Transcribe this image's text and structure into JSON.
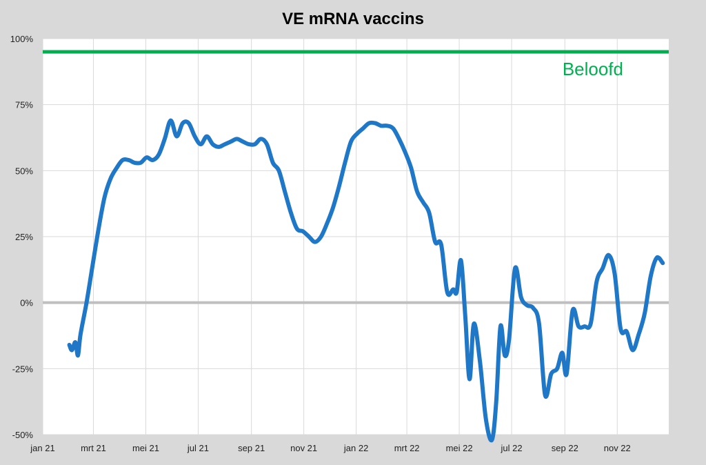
{
  "chart_data": {
    "type": "line",
    "title": "VE mRNA vaccins",
    "xlabel": "",
    "ylabel": "",
    "x_tick_labels": [
      "jan 21",
      "mrt 21",
      "mei 21",
      "jul 21",
      "sep 21",
      "nov 21",
      "jan 22",
      "mrt 22",
      "mei 22",
      "jul 22",
      "sep 22",
      "nov 22"
    ],
    "x_ticks": [
      "2021-01-01",
      "2021-03-01",
      "2021-05-01",
      "2021-07-01",
      "2021-09-01",
      "2021-11-01",
      "2022-01-01",
      "2022-03-01",
      "2022-05-01",
      "2022-07-01",
      "2022-09-01",
      "2022-11-01"
    ],
    "xlim": [
      "2021-01-01",
      "2022-12-31"
    ],
    "y_tick_labels": [
      "100%",
      "75%",
      "50%",
      "25%",
      "0%",
      "-25%",
      "-50%"
    ],
    "y_ticks": [
      100,
      75,
      50,
      25,
      0,
      -25,
      -50
    ],
    "ylim": [
      -50,
      100
    ],
    "grid": true,
    "reference_lines": [
      {
        "label": "Beloofd",
        "y": 95,
        "color": "#00b050"
      },
      {
        "label": "",
        "y": 0,
        "color": "#bfbfbf"
      }
    ],
    "series": [
      {
        "color": "#1f77c8",
        "points": [
          [
            "2021-02-01",
            -16
          ],
          [
            "2021-02-04",
            -18
          ],
          [
            "2021-02-08",
            -15
          ],
          [
            "2021-02-11",
            -20
          ],
          [
            "2021-02-14",
            -12
          ],
          [
            "2021-02-21",
            0
          ],
          [
            "2021-02-28",
            14
          ],
          [
            "2021-03-07",
            28
          ],
          [
            "2021-03-14",
            40
          ],
          [
            "2021-03-21",
            47
          ],
          [
            "2021-03-28",
            51
          ],
          [
            "2021-04-04",
            54
          ],
          [
            "2021-04-11",
            54
          ],
          [
            "2021-04-18",
            53
          ],
          [
            "2021-04-25",
            53
          ],
          [
            "2021-05-02",
            55
          ],
          [
            "2021-05-09",
            54
          ],
          [
            "2021-05-16",
            56
          ],
          [
            "2021-05-23",
            62
          ],
          [
            "2021-05-30",
            69
          ],
          [
            "2021-06-06",
            63
          ],
          [
            "2021-06-13",
            68
          ],
          [
            "2021-06-20",
            68
          ],
          [
            "2021-06-27",
            63
          ],
          [
            "2021-07-04",
            60
          ],
          [
            "2021-07-11",
            63
          ],
          [
            "2021-07-18",
            60
          ],
          [
            "2021-07-25",
            59
          ],
          [
            "2021-08-01",
            60
          ],
          [
            "2021-08-08",
            61
          ],
          [
            "2021-08-15",
            62
          ],
          [
            "2021-08-22",
            61
          ],
          [
            "2021-08-29",
            60
          ],
          [
            "2021-09-05",
            60
          ],
          [
            "2021-09-12",
            62
          ],
          [
            "2021-09-19",
            60
          ],
          [
            "2021-09-26",
            53
          ],
          [
            "2021-10-03",
            50
          ],
          [
            "2021-10-10",
            42
          ],
          [
            "2021-10-17",
            34
          ],
          [
            "2021-10-24",
            28
          ],
          [
            "2021-10-31",
            27
          ],
          [
            "2021-11-07",
            25
          ],
          [
            "2021-11-14",
            23
          ],
          [
            "2021-11-21",
            25
          ],
          [
            "2021-11-28",
            30
          ],
          [
            "2021-12-05",
            36
          ],
          [
            "2021-12-12",
            44
          ],
          [
            "2021-12-19",
            53
          ],
          [
            "2021-12-26",
            61
          ],
          [
            "2022-01-02",
            64
          ],
          [
            "2022-01-09",
            66
          ],
          [
            "2022-01-16",
            68
          ],
          [
            "2022-01-23",
            68
          ],
          [
            "2022-01-30",
            67
          ],
          [
            "2022-02-06",
            67
          ],
          [
            "2022-02-13",
            66
          ],
          [
            "2022-02-20",
            62
          ],
          [
            "2022-02-27",
            57
          ],
          [
            "2022-03-06",
            51
          ],
          [
            "2022-03-13",
            42
          ],
          [
            "2022-03-20",
            38
          ],
          [
            "2022-03-27",
            34
          ],
          [
            "2022-04-03",
            23
          ],
          [
            "2022-04-10",
            22
          ],
          [
            "2022-04-17",
            4
          ],
          [
            "2022-04-24",
            5
          ],
          [
            "2022-04-28",
            4
          ],
          [
            "2022-05-03",
            16
          ],
          [
            "2022-05-08",
            -5
          ],
          [
            "2022-05-13",
            -29
          ],
          [
            "2022-05-18",
            -8
          ],
          [
            "2022-05-25",
            -22
          ],
          [
            "2022-06-01",
            -44
          ],
          [
            "2022-06-08",
            -52
          ],
          [
            "2022-06-13",
            -38
          ],
          [
            "2022-06-18",
            -9
          ],
          [
            "2022-06-23",
            -20
          ],
          [
            "2022-06-28",
            -14
          ],
          [
            "2022-07-05",
            13
          ],
          [
            "2022-07-12",
            2
          ],
          [
            "2022-07-19",
            -1
          ],
          [
            "2022-07-26",
            -2
          ],
          [
            "2022-08-02",
            -8
          ],
          [
            "2022-08-09",
            -35
          ],
          [
            "2022-08-16",
            -27
          ],
          [
            "2022-08-23",
            -25
          ],
          [
            "2022-08-29",
            -19
          ],
          [
            "2022-09-03",
            -27
          ],
          [
            "2022-09-10",
            -3
          ],
          [
            "2022-09-17",
            -9
          ],
          [
            "2022-09-24",
            -9
          ],
          [
            "2022-10-01",
            -8
          ],
          [
            "2022-10-08",
            8
          ],
          [
            "2022-10-15",
            13
          ],
          [
            "2022-10-22",
            18
          ],
          [
            "2022-10-29",
            11
          ],
          [
            "2022-11-05",
            -10
          ],
          [
            "2022-11-12",
            -11
          ],
          [
            "2022-11-19",
            -18
          ],
          [
            "2022-11-26",
            -12
          ],
          [
            "2022-12-03",
            -4
          ],
          [
            "2022-12-10",
            10
          ],
          [
            "2022-12-17",
            17
          ],
          [
            "2022-12-24",
            15
          ]
        ]
      }
    ]
  }
}
